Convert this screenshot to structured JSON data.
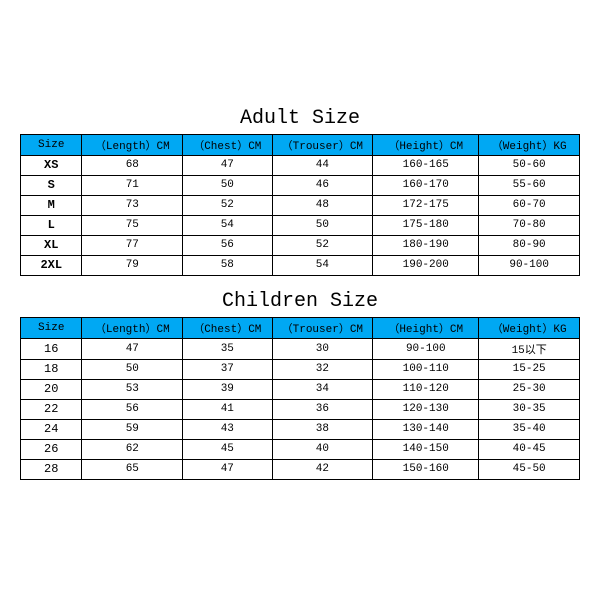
{
  "adult": {
    "title": "Adult Size",
    "headers": [
      "Size",
      "（Length）CM",
      "（Chest）CM",
      "（Trouser）CM",
      "（Height）CM",
      "（Weight）KG"
    ],
    "rows": [
      [
        "XS",
        "68",
        "47",
        "44",
        "160-165",
        "50-60"
      ],
      [
        "S",
        "71",
        "50",
        "46",
        "160-170",
        "55-60"
      ],
      [
        "M",
        "73",
        "52",
        "48",
        "172-175",
        "60-70"
      ],
      [
        "L",
        "75",
        "54",
        "50",
        "175-180",
        "70-80"
      ],
      [
        "XL",
        "77",
        "56",
        "52",
        "180-190",
        "80-90"
      ],
      [
        "2XL",
        "79",
        "58",
        "54",
        "190-200",
        "90-100"
      ]
    ]
  },
  "children": {
    "title": "Children Size",
    "headers": [
      "Size",
      "（Length）CM",
      "（Chest）CM",
      "（Trouser）CM",
      "（Height）CM",
      "（Weight）KG"
    ],
    "rows": [
      [
        "16",
        "47",
        "35",
        "30",
        "90-100",
        "15以下"
      ],
      [
        "18",
        "50",
        "37",
        "32",
        "100-110",
        "15-25"
      ],
      [
        "20",
        "53",
        "39",
        "34",
        "110-120",
        "25-30"
      ],
      [
        "22",
        "56",
        "41",
        "36",
        "120-130",
        "30-35"
      ],
      [
        "24",
        "59",
        "43",
        "38",
        "130-140",
        "35-40"
      ],
      [
        "26",
        "62",
        "45",
        "40",
        "140-150",
        "40-45"
      ],
      [
        "28",
        "65",
        "47",
        "42",
        "150-160",
        "45-50"
      ]
    ]
  },
  "style": {
    "header_bg": "#00a8f3",
    "border_color": "#000000",
    "background": "#ffffff",
    "title_fontsize": 20,
    "cell_fontsize": 11,
    "font_family": "Courier New"
  }
}
